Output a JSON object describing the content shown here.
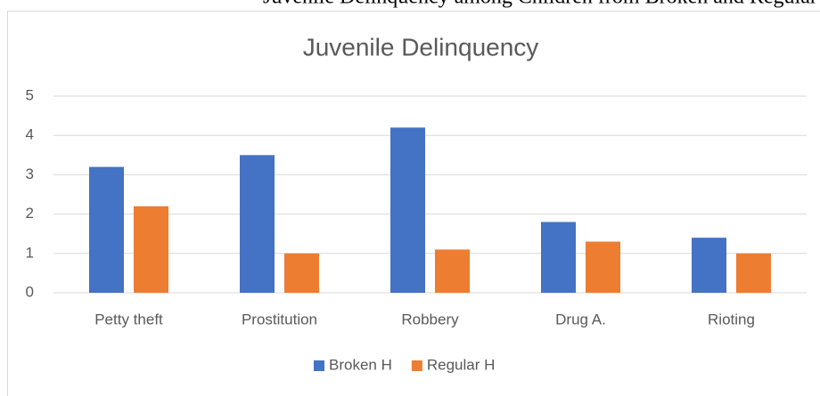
{
  "caption": "Juvenile Delinquency among Children from Broken and Regular Homes",
  "chart_data": {
    "type": "bar",
    "title": "Juvenile Delinquency",
    "categories": [
      "Petty theft",
      "Prostitution",
      "Robbery",
      "Drug A.",
      "Rioting"
    ],
    "series": [
      {
        "name": "Broken H",
        "color": "#4472c4",
        "values": [
          3.2,
          3.5,
          4.2,
          1.8,
          1.4
        ]
      },
      {
        "name": "Regular H",
        "color": "#ed7d31",
        "values": [
          2.2,
          1.0,
          1.1,
          1.3,
          1.0
        ]
      }
    ],
    "ylim": [
      0,
      5
    ],
    "yticks": [
      0,
      1,
      2,
      3,
      4,
      5
    ],
    "grid": true,
    "legend": "bottom"
  }
}
